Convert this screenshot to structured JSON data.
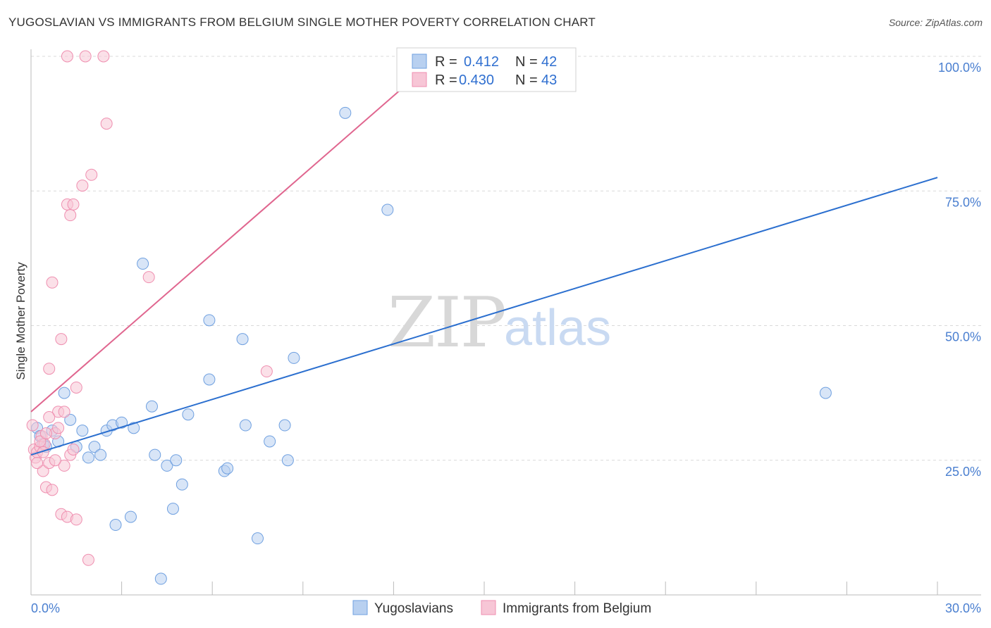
{
  "chart_data": {
    "type": "scatter",
    "title": "YUGOSLAVIAN VS IMMIGRANTS FROM BELGIUM SINGLE MOTHER POVERTY CORRELATION CHART",
    "source": "Source: ZipAtlas.com",
    "xlabel": "",
    "ylabel": "Single Mother Poverty",
    "xlim": [
      0,
      30
    ],
    "ylim": [
      0,
      100
    ],
    "x_tick_labels": [
      "0.0%",
      "30.0%"
    ],
    "y_ticks": [
      25,
      50,
      75,
      100
    ],
    "y_tick_labels": [
      "25.0%",
      "50.0%",
      "75.0%",
      "100.0%"
    ],
    "grid": true,
    "watermark": {
      "zip": "ZIP",
      "atlas": "atlas"
    },
    "legend": {
      "position": "top-center",
      "entries": [
        {
          "series": "Yugoslavians",
          "r_label": "R =",
          "r_value": "0.412",
          "n_label": "N =",
          "n_value": "42"
        },
        {
          "series": "Immigrants from Belgium",
          "r_label": "R =",
          "r_value": "0.430",
          "n_label": "N =",
          "n_value": "43"
        }
      ]
    },
    "bottom_legend": [
      "Yugoslavians",
      "Immigrants from Belgium"
    ],
    "series": [
      {
        "name": "Yugoslavians",
        "color": "#6fa0e0",
        "fill": "#b8d0f0",
        "trend": {
          "x": [
            0,
            30
          ],
          "y": [
            26.0,
            77.5
          ],
          "color": "#2b6fcf"
        },
        "points": [
          [
            0.2,
            31.0
          ],
          [
            0.3,
            29.5
          ],
          [
            0.4,
            28.0
          ],
          [
            0.5,
            27.5
          ],
          [
            0.7,
            30.5
          ],
          [
            0.9,
            28.5
          ],
          [
            1.1,
            37.5
          ],
          [
            1.3,
            32.5
          ],
          [
            1.5,
            27.5
          ],
          [
            1.7,
            30.5
          ],
          [
            1.9,
            25.5
          ],
          [
            2.1,
            27.5
          ],
          [
            2.3,
            26.0
          ],
          [
            2.5,
            30.5
          ],
          [
            2.7,
            31.5
          ],
          [
            3.0,
            32.0
          ],
          [
            3.4,
            31.0
          ],
          [
            3.7,
            61.5
          ],
          [
            4.0,
            35.0
          ],
          [
            4.1,
            26.0
          ],
          [
            4.5,
            24.0
          ],
          [
            4.7,
            16.0
          ],
          [
            4.8,
            25.0
          ],
          [
            5.0,
            20.5
          ],
          [
            5.2,
            33.5
          ],
          [
            5.9,
            40.0
          ],
          [
            5.9,
            51.0
          ],
          [
            6.4,
            23.0
          ],
          [
            6.5,
            23.5
          ],
          [
            7.0,
            47.5
          ],
          [
            7.1,
            31.5
          ],
          [
            7.5,
            10.5
          ],
          [
            7.9,
            28.5
          ],
          [
            8.4,
            31.5
          ],
          [
            8.5,
            25.0
          ],
          [
            8.7,
            44.0
          ],
          [
            2.8,
            13.0
          ],
          [
            3.3,
            14.5
          ],
          [
            4.3,
            3.0
          ],
          [
            10.4,
            89.5
          ],
          [
            11.8,
            71.5
          ],
          [
            26.3,
            37.5
          ]
        ]
      },
      {
        "name": "Immigrants from Belgium",
        "color": "#ef8fb0",
        "fill": "#f7c6d6",
        "trend": {
          "x": [
            0,
            13.5
          ],
          "y": [
            34.0,
            100.0
          ],
          "color": "#e0668f"
        },
        "points": [
          [
            0.05,
            31.5
          ],
          [
            0.1,
            27.0
          ],
          [
            0.15,
            25.5
          ],
          [
            0.2,
            26.5
          ],
          [
            0.3,
            27.5
          ],
          [
            0.35,
            29.5
          ],
          [
            0.4,
            23.0
          ],
          [
            0.45,
            28.0
          ],
          [
            0.5,
            20.0
          ],
          [
            0.6,
            24.5
          ],
          [
            0.7,
            19.5
          ],
          [
            0.8,
            30.0
          ],
          [
            0.9,
            31.0
          ],
          [
            1.0,
            15.0
          ],
          [
            1.1,
            24.0
          ],
          [
            1.2,
            14.5
          ],
          [
            1.3,
            26.0
          ],
          [
            1.5,
            14.0
          ],
          [
            0.6,
            42.0
          ],
          [
            0.7,
            58.0
          ],
          [
            0.9,
            34.0
          ],
          [
            1.0,
            47.5
          ],
          [
            1.2,
            72.5
          ],
          [
            1.3,
            70.5
          ],
          [
            1.4,
            72.5
          ],
          [
            1.5,
            38.5
          ],
          [
            1.7,
            76.0
          ],
          [
            1.9,
            6.5
          ],
          [
            2.0,
            78.0
          ],
          [
            2.5,
            87.5
          ],
          [
            1.2,
            100.0
          ],
          [
            1.8,
            100.0
          ],
          [
            2.4,
            100.0
          ],
          [
            3.9,
            59.0
          ],
          [
            7.8,
            41.5
          ],
          [
            0.3,
            28.5
          ],
          [
            0.5,
            30.0
          ],
          [
            0.2,
            24.5
          ],
          [
            1.1,
            34.0
          ],
          [
            0.8,
            25.0
          ],
          [
            1.4,
            27.0
          ],
          [
            0.4,
            26.5
          ],
          [
            0.6,
            33.0
          ]
        ]
      }
    ]
  }
}
